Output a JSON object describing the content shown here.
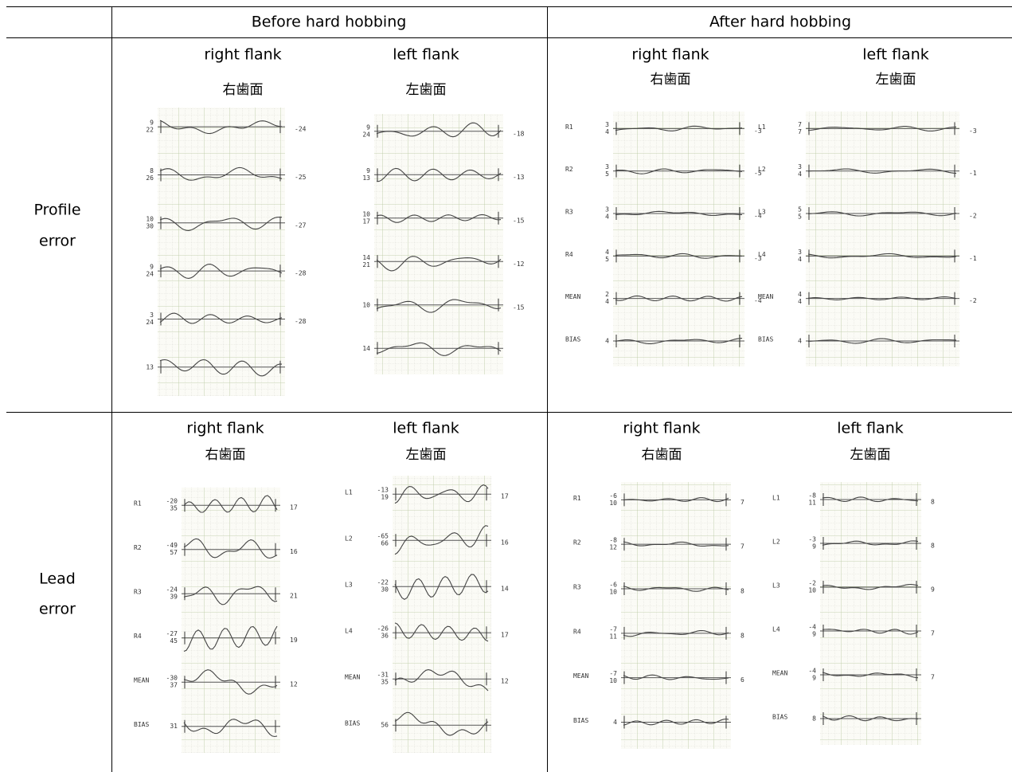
{
  "table": {
    "header": [
      "Before hard hobbing",
      "After hard hobbing"
    ],
    "rows": [
      {
        "label": [
          "Profile",
          "error"
        ],
        "cells": [
          {
            "panels": [
              {
                "title": "right flank",
                "title_jp": "右歯面",
                "rows": [
                  {
                    "left": [
                      "9",
                      "22"
                    ],
                    "right": "-24"
                  },
                  {
                    "left": [
                      "8",
                      "26"
                    ],
                    "right": "-25"
                  },
                  {
                    "left": [
                      "10",
                      "30"
                    ],
                    "right": "-27"
                  },
                  {
                    "left": [
                      "9",
                      "24"
                    ],
                    "right": "-28"
                  },
                  {
                    "left": [
                      "3",
                      "24"
                    ],
                    "right": "-28"
                  },
                  {
                    "left": [
                      "13"
                    ]
                  }
                ]
              },
              {
                "title": "left flank",
                "title_jp": "左歯面",
                "rows": [
                  {
                    "left": [
                      "9",
                      "24"
                    ],
                    "right": "-18"
                  },
                  {
                    "left": [
                      "9",
                      "13"
                    ],
                    "right": "-13"
                  },
                  {
                    "left": [
                      "10",
                      "17"
                    ],
                    "right": "-15"
                  },
                  {
                    "left": [
                      "14",
                      "21"
                    ],
                    "right": "-12"
                  },
                  {
                    "left": [
                      "10"
                    ],
                    "right": "-15"
                  },
                  {
                    "left": [
                      "14"
                    ]
                  }
                ]
              }
            ]
          },
          {
            "panels": [
              {
                "title": "right flank",
                "title_jp": "右歯面",
                "rows": [
                  {
                    "name": "R1",
                    "left": [
                      "3",
                      "4"
                    ],
                    "right": "-3"
                  },
                  {
                    "name": "R2",
                    "left": [
                      "3",
                      "5"
                    ],
                    "right": "-5"
                  },
                  {
                    "name": "R3",
                    "left": [
                      "3",
                      "4"
                    ],
                    "right": "-4"
                  },
                  {
                    "name": "R4",
                    "left": [
                      "4",
                      "5"
                    ],
                    "right": "-3"
                  },
                  {
                    "name": "MEAN",
                    "left": [
                      "2",
                      "4"
                    ],
                    "right": "-4"
                  },
                  {
                    "name": "BIAS",
                    "left": [
                      "4"
                    ]
                  }
                ]
              },
              {
                "title": "left flank",
                "title_jp": "左歯面",
                "rows": [
                  {
                    "name": "L1",
                    "left": [
                      "7",
                      "7"
                    ],
                    "right": "-3"
                  },
                  {
                    "name": "L2",
                    "left": [
                      "3",
                      "4"
                    ],
                    "right": "-1"
                  },
                  {
                    "name": "L3",
                    "left": [
                      "5",
                      "5"
                    ],
                    "right": "-2"
                  },
                  {
                    "name": "L4",
                    "left": [
                      "3",
                      "4"
                    ],
                    "right": "-1"
                  },
                  {
                    "name": "MEAN",
                    "left": [
                      "4",
                      "4"
                    ],
                    "right": "-2"
                  },
                  {
                    "name": "BIAS",
                    "left": [
                      "4"
                    ]
                  }
                ]
              }
            ]
          }
        ]
      },
      {
        "label": [
          "Lead",
          "error"
        ],
        "cells": [
          {
            "panels": [
              {
                "title": "right flank",
                "title_jp": "右歯面",
                "rows": [
                  {
                    "name": "R1",
                    "left": [
                      "-20",
                      "35"
                    ],
                    "right": "17"
                  },
                  {
                    "name": "R2",
                    "left": [
                      "-49",
                      "57"
                    ],
                    "right": "16"
                  },
                  {
                    "name": "R3",
                    "left": [
                      "-24",
                      "39"
                    ],
                    "right": "21"
                  },
                  {
                    "name": "R4",
                    "left": [
                      "-27",
                      "45"
                    ],
                    "right": "19"
                  },
                  {
                    "name": "MEAN",
                    "left": [
                      "-30",
                      "37"
                    ],
                    "right": "12"
                  },
                  {
                    "name": "BIAS",
                    "left": [
                      "31"
                    ]
                  }
                ]
              },
              {
                "title": "left flank",
                "title_jp": "左歯面",
                "rows": [
                  {
                    "name": "L1",
                    "left": [
                      "-13",
                      "19"
                    ],
                    "right": "17"
                  },
                  {
                    "name": "L2",
                    "left": [
                      "-65",
                      "66"
                    ],
                    "right": "16"
                  },
                  {
                    "name": "L3",
                    "left": [
                      "-22",
                      "30"
                    ],
                    "right": "14"
                  },
                  {
                    "name": "L4",
                    "left": [
                      "-26",
                      "36"
                    ],
                    "right": "17"
                  },
                  {
                    "name": "MEAN",
                    "left": [
                      "-31",
                      "35"
                    ],
                    "right": "12"
                  },
                  {
                    "name": "BIAS",
                    "left": [
                      "56"
                    ]
                  }
                ]
              }
            ]
          },
          {
            "panels": [
              {
                "title": "right flank",
                "title_jp": "右歯面",
                "rows": [
                  {
                    "name": "R1",
                    "left": [
                      "-6",
                      "10"
                    ],
                    "right": "7"
                  },
                  {
                    "name": "R2",
                    "left": [
                      "-8",
                      "12"
                    ],
                    "right": "7"
                  },
                  {
                    "name": "R3",
                    "left": [
                      "-6",
                      "10"
                    ],
                    "right": "8"
                  },
                  {
                    "name": "R4",
                    "left": [
                      "-7",
                      "11"
                    ],
                    "right": "8"
                  },
                  {
                    "name": "MEAN",
                    "left": [
                      "-7",
                      "10"
                    ],
                    "right": "6"
                  },
                  {
                    "name": "BIAS",
                    "left": [
                      "4"
                    ]
                  }
                ]
              },
              {
                "title": "left flank",
                "title_jp": "左歯面",
                "rows": [
                  {
                    "name": "L1",
                    "left": [
                      "-8",
                      "11"
                    ],
                    "right": "8"
                  },
                  {
                    "name": "L2",
                    "left": [
                      "-3",
                      "9"
                    ],
                    "right": "8"
                  },
                  {
                    "name": "L3",
                    "left": [
                      "-2",
                      "10"
                    ],
                    "right": "9"
                  },
                  {
                    "name": "L4",
                    "left": [
                      "-4",
                      "9"
                    ],
                    "right": "7"
                  },
                  {
                    "name": "MEAN",
                    "left": [
                      "-4",
                      "9"
                    ],
                    "right": "7"
                  },
                  {
                    "name": "BIAS",
                    "left": [
                      "8"
                    ]
                  }
                ]
              }
            ]
          }
        ]
      }
    ]
  }
}
